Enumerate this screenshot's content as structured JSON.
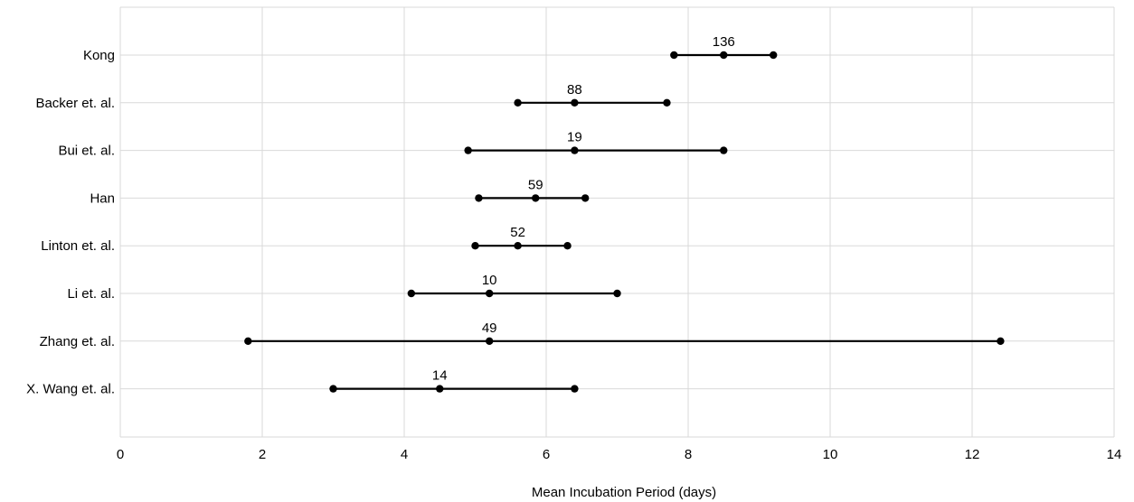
{
  "chart_data": {
    "type": "scatter",
    "subtype": "interval",
    "title": "",
    "xlabel": "Mean Incubation Period (days)",
    "ylabel": "",
    "xlim": [
      0,
      14
    ],
    "x_ticks": [
      0,
      2,
      4,
      6,
      8,
      10,
      12,
      14
    ],
    "grid": true,
    "legend": "none",
    "series": [
      {
        "label": "Kong",
        "low": 7.8,
        "mean": 8.5,
        "high": 9.2,
        "n": "136"
      },
      {
        "label": "Backer et. al.",
        "low": 5.6,
        "mean": 6.4,
        "high": 7.7,
        "n": "88"
      },
      {
        "label": "Bui et. al.",
        "low": 4.9,
        "mean": 6.4,
        "high": 8.5,
        "n": "19"
      },
      {
        "label": "Han",
        "low": 5.05,
        "mean": 5.85,
        "high": 6.55,
        "n": "59"
      },
      {
        "label": "Linton et. al.",
        "low": 5.0,
        "mean": 5.6,
        "high": 6.3,
        "n": "52"
      },
      {
        "label": "Li et. al.",
        "low": 4.1,
        "mean": 5.2,
        "high": 7.0,
        "n": "10"
      },
      {
        "label": "Zhang et. al.",
        "low": 1.8,
        "mean": 5.2,
        "high": 12.4,
        "n": "49"
      },
      {
        "label": "X. Wang et. al.",
        "low": 3.0,
        "mean": 4.5,
        "high": 6.4,
        "n": "14"
      }
    ],
    "colors": {
      "marks": "#000000",
      "grid": "#d9d9d9"
    }
  }
}
